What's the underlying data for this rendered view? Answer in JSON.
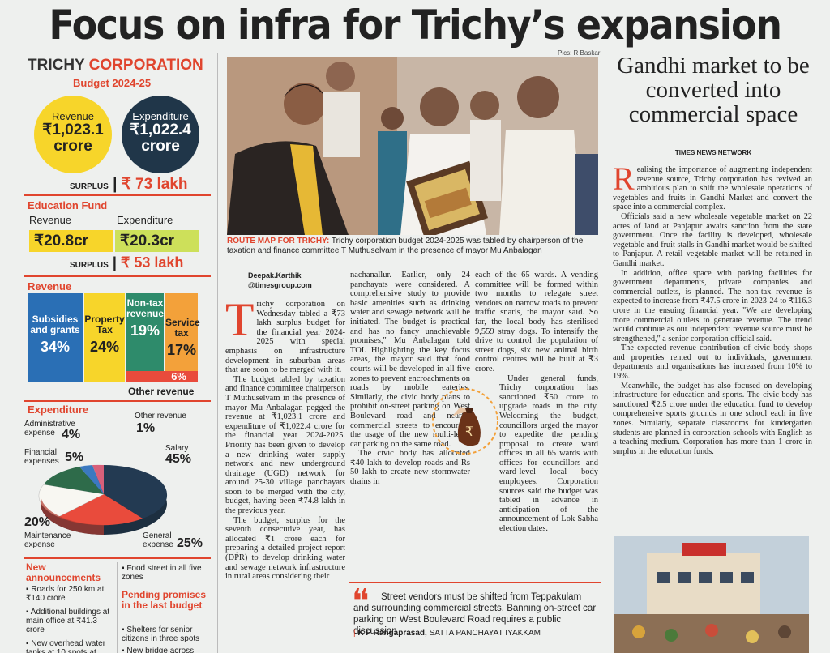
{
  "headline": "Focus on infra for Trichy’s expansion",
  "infographic": {
    "title_black": "TRICHY",
    "title_red": "CORPORATION",
    "subtitle": "Budget 2024-25",
    "revenue_label": "Revenue",
    "revenue_value": "₹1,023.1",
    "revenue_unit": "crore",
    "expenditure_label": "Expenditure",
    "expenditure_value": "₹1,022.4",
    "expenditure_unit": "crore",
    "surplus_label": "SURPLUS",
    "surplus_value": "₹ 73 lakh",
    "edu_heading": "Education Fund",
    "edu_revenue_label": "Revenue",
    "edu_expenditure_label": "Expenditure",
    "edu_revenue_value": "₹20.8cr",
    "edu_expenditure_value": "₹20.3cr",
    "edu_surplus_label": "SURPLUS",
    "edu_surplus_value": "₹ 53 lakh",
    "rev_heading": "Revenue",
    "rev_boxes": [
      {
        "label": "Subsidies and grants",
        "pct": "34%",
        "color": "#2a6fb5"
      },
      {
        "label": "Property Tax",
        "pct": "24%",
        "color": "#f7d52a"
      },
      {
        "label": "Non-tax revenue",
        "pct": "19%",
        "color": "#2e8b6b"
      },
      {
        "label": "Service tax",
        "pct": "17%",
        "color": "#f3a13a"
      }
    ],
    "other_rev_pct": "6%",
    "other_rev_label": "Other revenue",
    "exp_heading": "Expenditure",
    "pie": {
      "admin_label": "Administrative expense",
      "admin_pct": "4%",
      "other_label": "Other revenue",
      "other_pct": "1%",
      "fin_label": "Financial expenses",
      "fin_pct": "5%",
      "salary_label": "Salary",
      "salary_pct": "45%",
      "maint_label": "Maintenance expense",
      "maint_pct": "20%",
      "general_label": "General expense",
      "general_pct": "25%"
    },
    "new_ann_heading": "New announcements",
    "new_ann_items": [
      "Roads for 250 km at ₹140 crore",
      "Additional buildings at main office at ₹41.3 crore",
      "New overhead water tanks at 10 spots at"
    ],
    "mid_items": [
      "Food street in all five zones"
    ],
    "pending_heading": "Pending promises in the last budget",
    "pending_items": [
      "Shelters for senior citizens in three spots",
      "New bridge across"
    ]
  },
  "photo": {
    "credit": "Pics: R Baskar",
    "caption_label": "ROUTE MAP FOR TRICHY:",
    "caption_text": "Trichy corporation budget 2024-2025 was tabled by chairperson of the taxation and finance committee T Muthuselvam in the presence of mayor Mu Anbalagan"
  },
  "byline": {
    "name": "Deepak.Karthik",
    "handle": "@timesgroup.com"
  },
  "article_col1": "richy corporation on Wednesday tabled a ₹73 lakh surplus budget for the financial year 2024-2025 with special emphasis on infrastructure development in suburban areas that are soon to be merged with it.",
  "article_col1b": "The budget tabled by taxation and finance committee chairperson T Muthuselvam in the presence of mayor Mu Anbalagan pegged the revenue at ₹1,023.1 crore and expenditure of ₹1,022.4 crore for the financial year 2024-2025. Priority has been given to develop a new drinking water supply network and new underground drainage (UGD) network for around 25-30 village panchayats soon to be merged with the city, budget, having been ₹74.8 lakh in the previous year.",
  "article_col1c": "The budget, surplus for the seventh consecutive year, has allocated ₹1 crore each for preparing a detailed project report (DPR) to develop drinking water and sewage network infrastructure in rural areas considering their",
  "article_col2": "nachanallur. Earlier, only 24 panchayats were considered. A comprehensive study to provide basic amenities such as drinking water and sewage network will be initiated. The budget is practical and has no fancy unachievable promises,\" Mu Anbalagan told TOI. Highlighting the key focus areas, the mayor said that food courts will be developed in all five zones to prevent encroachments on roads by mobile eateries. Similarly, the civic body plans to prohibit on-street parking on West Boulevard road and nearby commercial streets to encourage the usage of the new multi-level car parking on the same road.",
  "article_col2b": "The civic body has allocated ₹40 lakh to develop roads and Rs 50 lakh to create new stormwater drains in",
  "article_col3": "each of the 65 wards. A vending committee will be formed within two months to relegate street vendors on narrow roads to prevent traffic snarls, the mayor said. So far, the local body has sterilised 9,559 stray dogs. To intensify the drive to control the population of street dogs, six new animal birth control centres will be built at ₹3 crore.",
  "article_col3b": "Under general funds, Trichy corporation has sanctioned ₹50 crore to upgrade roads in the city. Welcoming the budget, councillors urged the mayor to expedite the pending proposal to create ward offices in all 65 wards with offices for councillors and ward-level local body employees. Corporation sources said the budget was tabled in advance in anticipation of the announcement of Lok Sabha election dates.",
  "quote": {
    "text": "Street vendors must be shifted from Teppakulam and surrounding commercial streets. Banning on-street car parking on West Boulevard Road requires a public discussion",
    "author": "K P Rangaprasad,",
    "author_role": "SATTA PANCHAYAT IYAKKAM"
  },
  "right_article": {
    "headline": "Gandhi market to be converted into commercial space",
    "source": "TIMES NEWS NETWORK",
    "p1": "ealising the importance of augmenting independent revenue source, Trichy corporation has revived an ambitious plan to shift the wholesale operations of vegetables and fruits in Gandhi Market and convert the space into a commercial complex.",
    "p2": "Officials said a new wholesale vegetable market on 22 acres of land at Panjapur awaits sanction from the state government. Once the facility is developed, wholesale vegetable and fruit stalls in Gandhi market would be shifted to Panjapur. A retail vegetable market will be retained in Gandhi market.",
    "p3": "In addition, office space with parking facilities for government departments, private companies and commercial outlets, is planned. The non-tax revenue is expected to increase from ₹47.5 crore in 2023-24 to ₹116.3 crore in the ensuing financial year. \"We are developing more commercial outlets to generate revenue. The trend would continue as our independent revenue source must be strengthened,\" a senior corporation official said.",
    "p4": "The expected revenue contribution of civic body shops and properties rented out to individuals, government departments and organisations has increased from 10% to 19%.",
    "p5": "Meanwhile, the budget has also focused on developing infrastructure for education and sports. The civic body has sanctioned ₹2.5 crore under the education fund to develop comprehensive sports grounds in one school each in five zones. Similarly, separate classrooms for kindergarten students are planned in corporation schools with English as a teaching medium. Corporation has more than 1 crore in surplus in the education funds."
  }
}
